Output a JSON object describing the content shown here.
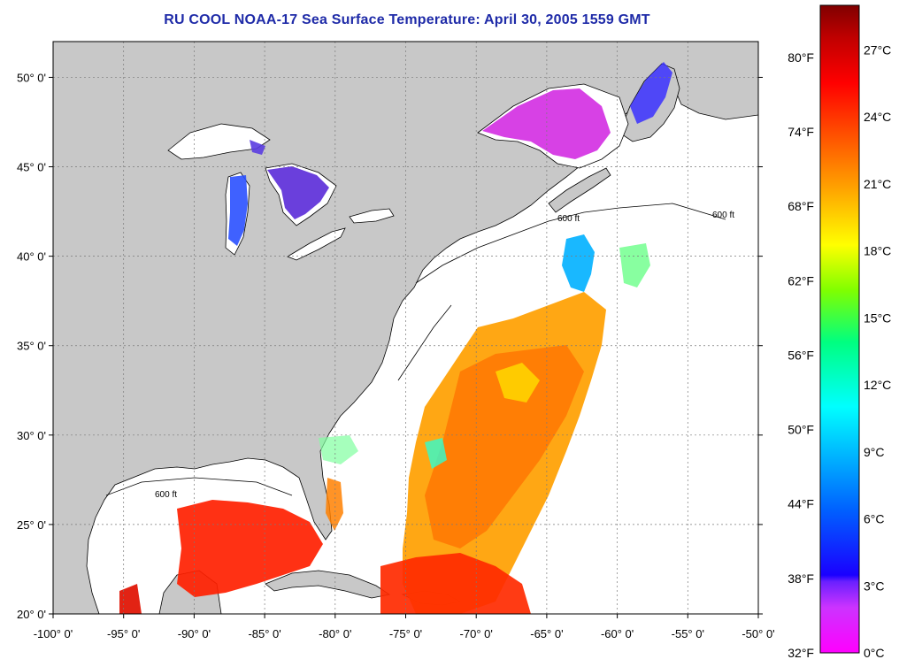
{
  "title": "RU COOL  NOAA-17  Sea Surface Temperature:  April 30, 2005 1559 GMT",
  "map": {
    "lon_range": [
      -100,
      -50
    ],
    "lat_range": [
      20,
      52
    ],
    "lon_ticks": [
      {
        "value": -100,
        "label": "-100° 0'"
      },
      {
        "value": -95,
        "label": "-95° 0'"
      },
      {
        "value": -90,
        "label": "-90° 0'"
      },
      {
        "value": -85,
        "label": "-85° 0'"
      },
      {
        "value": -80,
        "label": "-80° 0'"
      },
      {
        "value": -75,
        "label": "-75° 0'"
      },
      {
        "value": -70,
        "label": "-70° 0'"
      },
      {
        "value": -65,
        "label": "-65° 0'"
      },
      {
        "value": -60,
        "label": "-60° 0'"
      },
      {
        "value": -55,
        "label": "-55° 0'"
      },
      {
        "value": -50,
        "label": "-50° 0'"
      }
    ],
    "lat_ticks": [
      {
        "value": 20,
        "label": "20° 0'"
      },
      {
        "value": 25,
        "label": "25° 0'"
      },
      {
        "value": 30,
        "label": "30° 0'"
      },
      {
        "value": 35,
        "label": "35° 0'"
      },
      {
        "value": 40,
        "label": "40° 0'"
      },
      {
        "value": 45,
        "label": "45° 0'"
      },
      {
        "value": 50,
        "label": "50° 0'"
      }
    ],
    "contour_label": "600 ft",
    "grid": "dashed",
    "colors": {
      "land": "#c8c8c8",
      "ocean": "#ffffff",
      "grid": "#7a7a7a"
    }
  },
  "colorbar": {
    "fahrenheit_labels": [
      {
        "value": 32,
        "label": "32°F"
      },
      {
        "value": 38,
        "label": "38°F"
      },
      {
        "value": 44,
        "label": "44°F"
      },
      {
        "value": 50,
        "label": "50°F"
      },
      {
        "value": 56,
        "label": "56°F"
      },
      {
        "value": 62,
        "label": "62°F"
      },
      {
        "value": 68,
        "label": "68°F"
      },
      {
        "value": 74,
        "label": "74°F"
      },
      {
        "value": 80,
        "label": "80°F"
      }
    ],
    "celsius_labels": [
      {
        "value": 0,
        "label": "0°C"
      },
      {
        "value": 3,
        "label": "3°C"
      },
      {
        "value": 6,
        "label": "6°C"
      },
      {
        "value": 9,
        "label": "9°C"
      },
      {
        "value": 12,
        "label": "12°C"
      },
      {
        "value": 15,
        "label": "15°C"
      },
      {
        "value": 18,
        "label": "18°C"
      },
      {
        "value": 21,
        "label": "21°C"
      },
      {
        "value": 24,
        "label": "24°C"
      },
      {
        "value": 27,
        "label": "27°C"
      }
    ],
    "range_c": [
      0,
      29
    ],
    "stops": [
      "#ff00ff",
      "#9b30ff",
      "#1a00ff",
      "#0060ff",
      "#00a8ff",
      "#00ffff",
      "#00ff80",
      "#80ff00",
      "#ffff00",
      "#ffa000",
      "#ff5000",
      "#ff0000",
      "#b00000",
      "#800000"
    ]
  }
}
